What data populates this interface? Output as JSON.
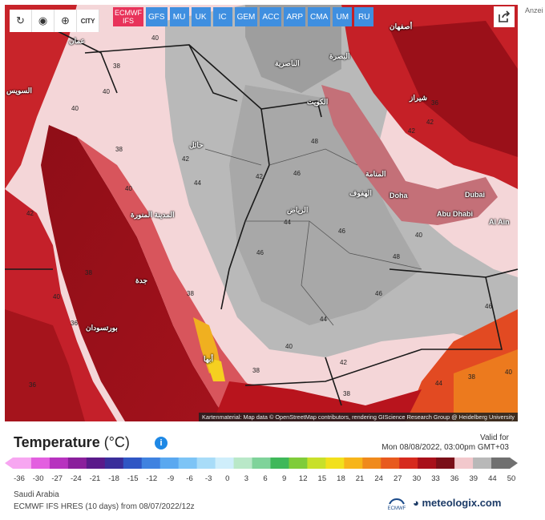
{
  "toolbar": {
    "buttons": [
      {
        "icon": "refresh-icon"
      },
      {
        "icon": "location-pin-icon"
      },
      {
        "icon": "zoom-icon"
      },
      {
        "icon": "city-label-icon",
        "label": "CITY"
      }
    ],
    "share_icon": "share-icon"
  },
  "models": {
    "active": {
      "label_line1": "ECMWF",
      "label_line2": "IFS"
    },
    "list": [
      "GFS",
      "MU",
      "UK",
      "IC",
      "GEM",
      "ACC",
      "ARP",
      "CMA",
      "UM",
      "RU"
    ]
  },
  "side_text": "Anzei",
  "map": {
    "attribution": "Kartenmaterial: Map data © OpenStreetMap contributors, rendering GIScience Research Group @ Heidelberg University",
    "cities": [
      {
        "name": "Doha"
      },
      {
        "name": "Dubai"
      },
      {
        "name": "Abu Dhabi"
      },
      {
        "name": "Al Ain"
      },
      {
        "name": "عمان"
      },
      {
        "name": "الكويت"
      },
      {
        "name": "الرياض"
      },
      {
        "name": "جدة"
      },
      {
        "name": "المدينة المنورة"
      },
      {
        "name": "حائل"
      },
      {
        "name": "المنامة"
      },
      {
        "name": "الهفوف"
      },
      {
        "name": "أصفهان"
      },
      {
        "name": "شيراز"
      },
      {
        "name": "بورتسودان"
      },
      {
        "name": "السويس"
      },
      {
        "name": "أبها"
      },
      {
        "name": "الناصرية"
      },
      {
        "name": "البصرة"
      }
    ],
    "isotherm_labels": [
      "40",
      "38",
      "40",
      "40",
      "42",
      "42",
      "44",
      "46",
      "48",
      "46",
      "44",
      "46",
      "48",
      "46",
      "46",
      "44",
      "42",
      "40",
      "38",
      "38",
      "36",
      "38",
      "40",
      "42",
      "42",
      "44",
      "38",
      "40",
      "36",
      "42",
      "38",
      "40",
      "36",
      "38",
      "40"
    ]
  },
  "legend": {
    "title": "Temperature",
    "unit": "(°C)",
    "info_icon": "info-icon",
    "valid_for_label": "Valid for",
    "valid_for_value": "Mon 08/08/2022, 03:00pm GMT+03",
    "ticks": [
      "-36",
      "-30",
      "-27",
      "-24",
      "-21",
      "-18",
      "-15",
      "-12",
      "-9",
      "-6",
      "-3",
      "0",
      "3",
      "6",
      "9",
      "12",
      "15",
      "18",
      "21",
      "24",
      "27",
      "30",
      "33",
      "36",
      "39",
      "44",
      "50"
    ],
    "colors": [
      "#f7a6f1",
      "#e35fe0",
      "#b732bf",
      "#8a1f9c",
      "#5a1a8a",
      "#3a2e9a",
      "#2f56c4",
      "#3f82e0",
      "#5aa8f0",
      "#7dc4f6",
      "#a8dcf8",
      "#cfeefb",
      "#b9e8c8",
      "#7fd39a",
      "#3fb85a",
      "#7fcc3a",
      "#c8e02a",
      "#f2e01c",
      "#f7b51a",
      "#f08a1c",
      "#e85a1e",
      "#d62a1e",
      "#a8101a",
      "#7a0f18",
      "#f2c8cc",
      "#b8b8b8",
      "#707070"
    ]
  },
  "footer": {
    "region": "Saudi Arabia",
    "run": "ECMWF IFS HRES  (10 days)  from 08/07/2022/12z",
    "ecmwf_logo_label": "ECMWF",
    "brand": "meteologix.com"
  }
}
